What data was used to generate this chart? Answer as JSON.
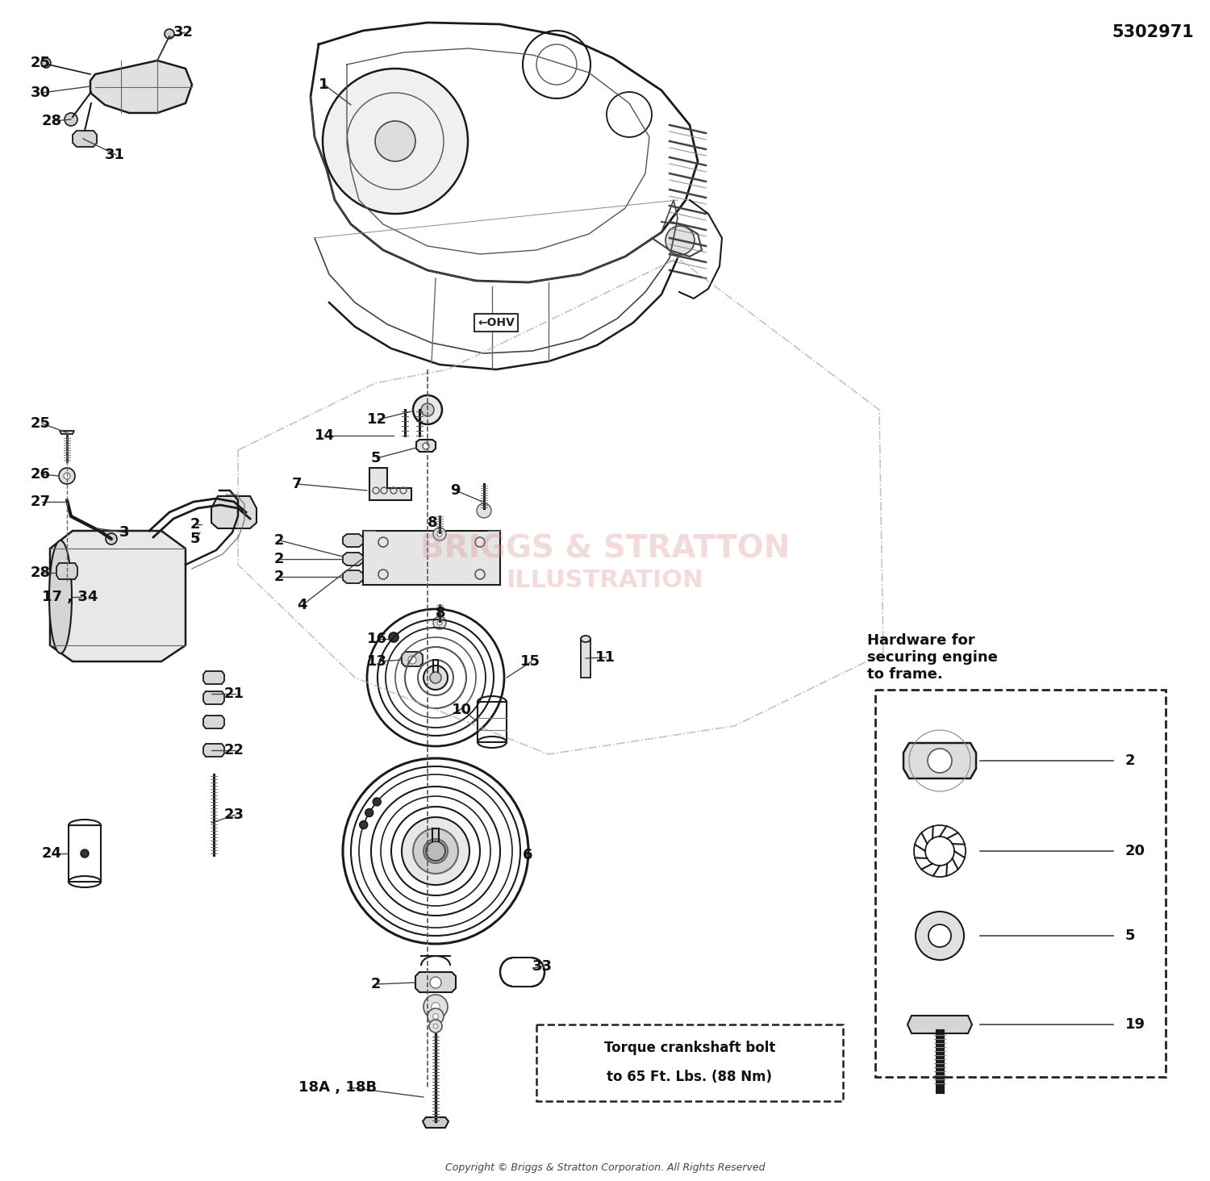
{
  "fig_width": 15.0,
  "fig_height": 14.64,
  "dpi": 100,
  "bg_color": "#ffffff",
  "part_number": "5302971",
  "copyright_text": "Copyright © Briggs & Stratton Corporation. All Rights Reserved",
  "hardware_title": "Hardware for\nsecuring engine\nto frame.",
  "torque_note_line1": "Torque crankshaft bolt",
  "torque_note_line2": "to 65 Ft. Lbs. (88 Nm)",
  "watermark1": "BRIGGS & STRATTON",
  "watermark2": "ILLUSTRATION"
}
